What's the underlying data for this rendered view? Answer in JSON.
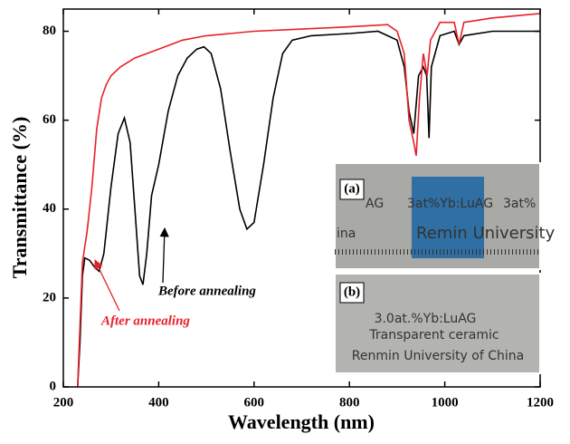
{
  "chart_data": {
    "type": "line",
    "xlabel": "Wavelength (nm)",
    "ylabel": "Transmittance (%)",
    "xlim": [
      200,
      1200
    ],
    "ylim": [
      0,
      85
    ],
    "xticks": [
      200,
      400,
      600,
      800,
      1000,
      1200
    ],
    "yticks": [
      0,
      20,
      40,
      60,
      80
    ],
    "series": [
      {
        "name": "Before annealing",
        "color": "#000000",
        "x": [
          230,
          235,
          240,
          245,
          255,
          265,
          275,
          285,
          300,
          315,
          328,
          340,
          350,
          360,
          367,
          375,
          385,
          400,
          420,
          440,
          460,
          480,
          495,
          510,
          530,
          550,
          570,
          585,
          600,
          620,
          640,
          660,
          680,
          720,
          800,
          860,
          880,
          900,
          915,
          925,
          935,
          945,
          955,
          962,
          967,
          972,
          990,
          1020,
          1030,
          1040,
          1100,
          1200
        ],
        "values": [
          0,
          10,
          25,
          29,
          28.5,
          27,
          26,
          30,
          45,
          57,
          60.5,
          55,
          40,
          25,
          23,
          30,
          43,
          50,
          62,
          70,
          74,
          76,
          76.5,
          75,
          67,
          53,
          40,
          35.5,
          37,
          50,
          65,
          75,
          78,
          79,
          79.5,
          80,
          79,
          78,
          72,
          62,
          57,
          70,
          72,
          70,
          56,
          72,
          79,
          80,
          77,
          79,
          80,
          80
        ]
      },
      {
        "name": "After annealing",
        "color": "#e8202a",
        "x": [
          230,
          240,
          250,
          260,
          270,
          280,
          290,
          300,
          320,
          350,
          400,
          450,
          500,
          600,
          700,
          800,
          880,
          900,
          915,
          925,
          935,
          940,
          947,
          955,
          963,
          970,
          990,
          1020,
          1030,
          1040,
          1100,
          1200
        ],
        "values": [
          0,
          28,
          35,
          45,
          58,
          65,
          68,
          70,
          72,
          74,
          76,
          78,
          79,
          80,
          80.5,
          81,
          81.5,
          80,
          75,
          60,
          55,
          52,
          65,
          75,
          70,
          78,
          82,
          82,
          77,
          82,
          83,
          84
        ]
      }
    ],
    "insets": [
      {
        "label": "(a)",
        "texts": [
          "AG",
          "3at%Yb:LuAG",
          "3at%",
          "ina",
          "Remin University"
        ]
      },
      {
        "label": "(b)",
        "texts": [
          "3.0at.%Yb:LuAG",
          "Transparent ceramic",
          "Renmin University of China"
        ]
      }
    ]
  }
}
